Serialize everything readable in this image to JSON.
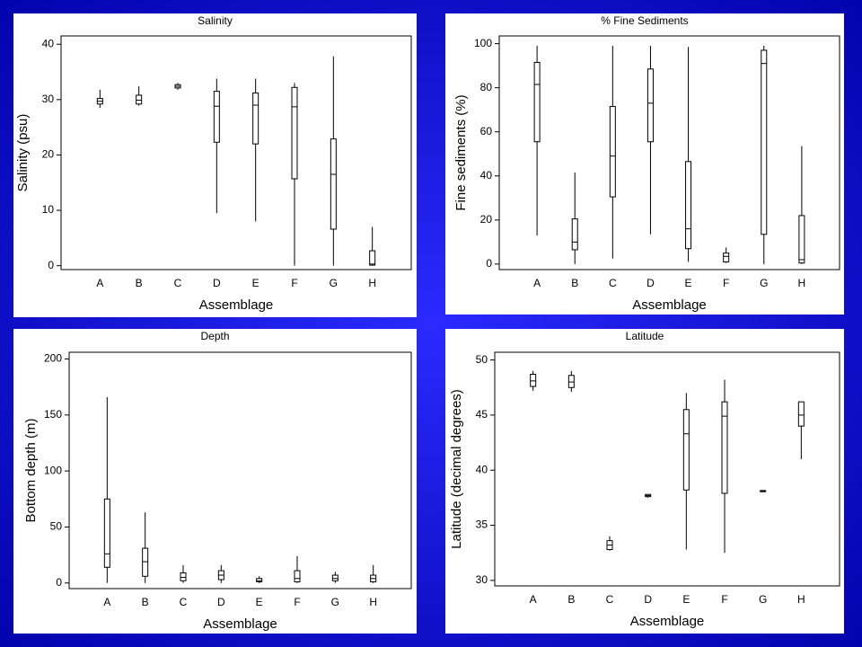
{
  "chart_data": [
    {
      "type": "box",
      "title": "Salinity",
      "xlabel": "Assemblage",
      "ylabel": "Salinity (psu)",
      "color": "#000000",
      "categories": [
        "A",
        "B",
        "C",
        "D",
        "E",
        "F",
        "G",
        "H"
      ],
      "min": [
        28.5,
        28.9,
        31.8,
        9.5,
        8,
        0,
        0,
        0
      ],
      "q1": [
        29.2,
        29.2,
        32.1,
        22.3,
        22,
        15.7,
        6.6,
        0.1
      ],
      "median": [
        29.7,
        29.9,
        32.4,
        28.8,
        29,
        28.7,
        16.5,
        0.3
      ],
      "q3": [
        30.2,
        30.8,
        32.7,
        31.5,
        31.2,
        32.2,
        22.9,
        2.7
      ],
      "max": [
        31.8,
        32.4,
        33,
        33.8,
        33.8,
        33,
        37.8,
        7
      ],
      "ylim": [
        -0.7,
        41.5
      ],
      "yticks": [
        0,
        10,
        20,
        30,
        40
      ]
    },
    {
      "type": "box",
      "title": "% Fine Sediments",
      "xlabel": "Assemblage",
      "ylabel": "Fine sediments (%)",
      "color": "#000000",
      "categories": [
        "A",
        "B",
        "C",
        "D",
        "E",
        "F",
        "G",
        "H"
      ],
      "min": [
        13,
        0,
        2.5,
        13.5,
        1,
        0.5,
        0,
        0
      ],
      "q1": [
        55.5,
        6.5,
        30.5,
        55.5,
        7,
        1,
        13.5,
        0.5
      ],
      "median": [
        81.5,
        10,
        49,
        73,
        16,
        3.5,
        91,
        2
      ],
      "q3": [
        91.5,
        20.5,
        71.5,
        88.5,
        46.5,
        5,
        97,
        22
      ],
      "max": [
        99,
        41.5,
        99,
        99,
        98.5,
        7.5,
        99,
        53.5
      ],
      "ylim": [
        -2.5,
        103.5
      ],
      "yticks": [
        0,
        20,
        40,
        60,
        80,
        100
      ]
    },
    {
      "type": "box",
      "title": "Depth",
      "xlabel": "Assemblage",
      "ylabel": "Bottom depth (m)",
      "color": "#000000",
      "categories": [
        "A",
        "B",
        "C",
        "D",
        "E",
        "F",
        "G",
        "H"
      ],
      "min": [
        0,
        0,
        0,
        0,
        0,
        0,
        0,
        0
      ],
      "q1": [
        14,
        6,
        2,
        3,
        1,
        1,
        2,
        1
      ],
      "median": [
        26,
        19,
        5,
        7,
        2,
        4,
        4,
        4
      ],
      "q3": [
        75,
        31,
        9,
        11,
        4,
        11,
        7,
        7
      ],
      "max": [
        166,
        63,
        16,
        16,
        6,
        24,
        10,
        16
      ],
      "ylim": [
        -5,
        206
      ],
      "yticks": [
        0,
        50,
        100,
        150,
        200
      ]
    },
    {
      "type": "box",
      "title": "Latitude",
      "xlabel": "Assemblage",
      "ylabel": "Latitude (decimal degrees)",
      "color": "#000000",
      "categories": [
        "A",
        "B",
        "C",
        "D",
        "E",
        "F",
        "G",
        "H"
      ],
      "min": [
        47.2,
        47.1,
        32.7,
        37.5,
        32.8,
        32.5,
        38.0,
        41.0
      ],
      "q1": [
        47.6,
        47.5,
        32.8,
        37.6,
        38.2,
        37.9,
        38.05,
        44.0
      ],
      "median": [
        48.1,
        48.0,
        33.2,
        37.7,
        43.3,
        44.9,
        38.1,
        45.0
      ],
      "q3": [
        48.7,
        48.6,
        33.6,
        37.8,
        45.5,
        46.2,
        38.15,
        46.2
      ],
      "max": [
        49.0,
        49.0,
        34.0,
        37.8,
        47.0,
        48.2,
        38.2,
        46.2
      ],
      "ylim": [
        29.5,
        50.7
      ],
      "yticks": [
        30,
        35,
        40,
        45,
        50
      ]
    }
  ]
}
